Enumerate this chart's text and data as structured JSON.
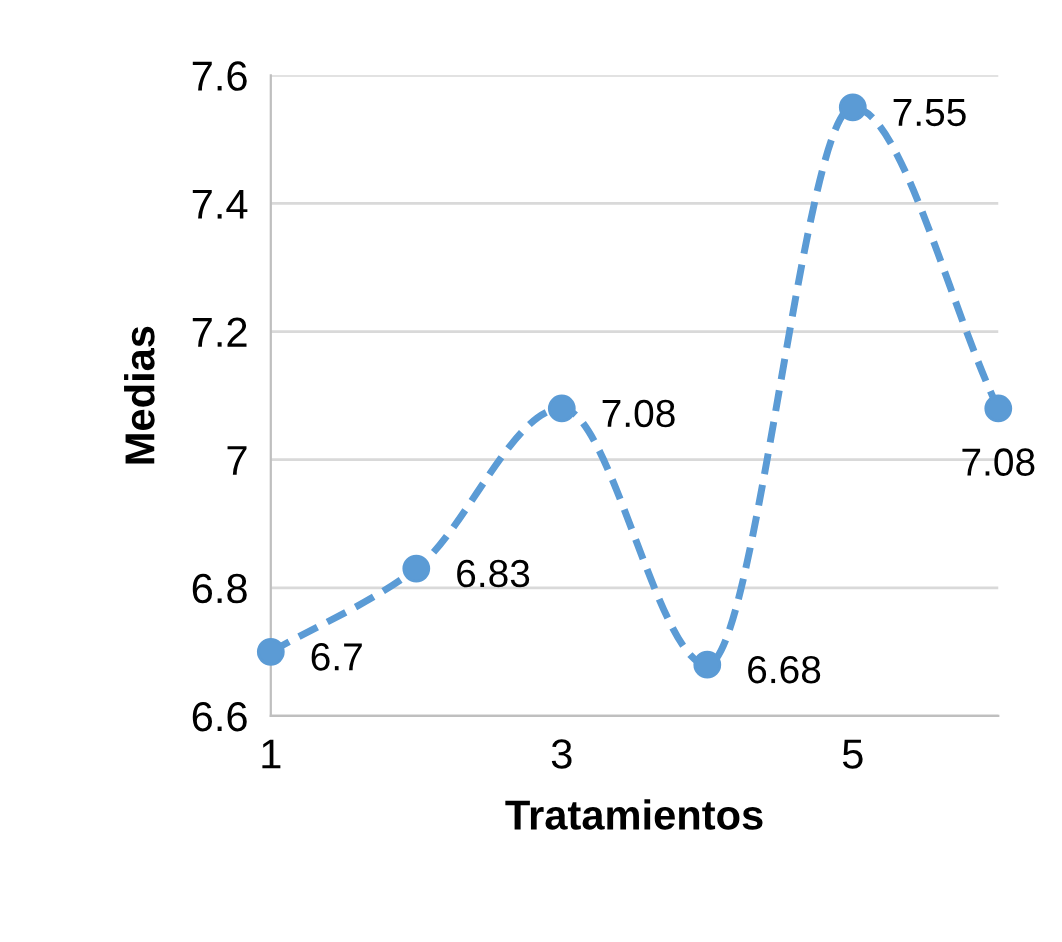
{
  "chart_data": {
    "type": "line",
    "xlabel": "Tratamientos",
    "ylabel": "Medias",
    "x": [
      1,
      2,
      3,
      4,
      5,
      6
    ],
    "series": [
      {
        "color": "#5b9bd5",
        "values": [
          6.7,
          6.83,
          7.08,
          6.68,
          7.55,
          7.08
        ]
      }
    ],
    "xlim": [
      1,
      6
    ],
    "xticks": [
      1,
      3,
      5
    ],
    "ylim": [
      6.6,
      7.6
    ],
    "yticks": [
      6.6,
      6.8,
      7,
      7.2,
      7.4,
      7.6
    ],
    "grid": "y",
    "marker": "circle",
    "line_style": "dashed",
    "data_labels": true
  }
}
